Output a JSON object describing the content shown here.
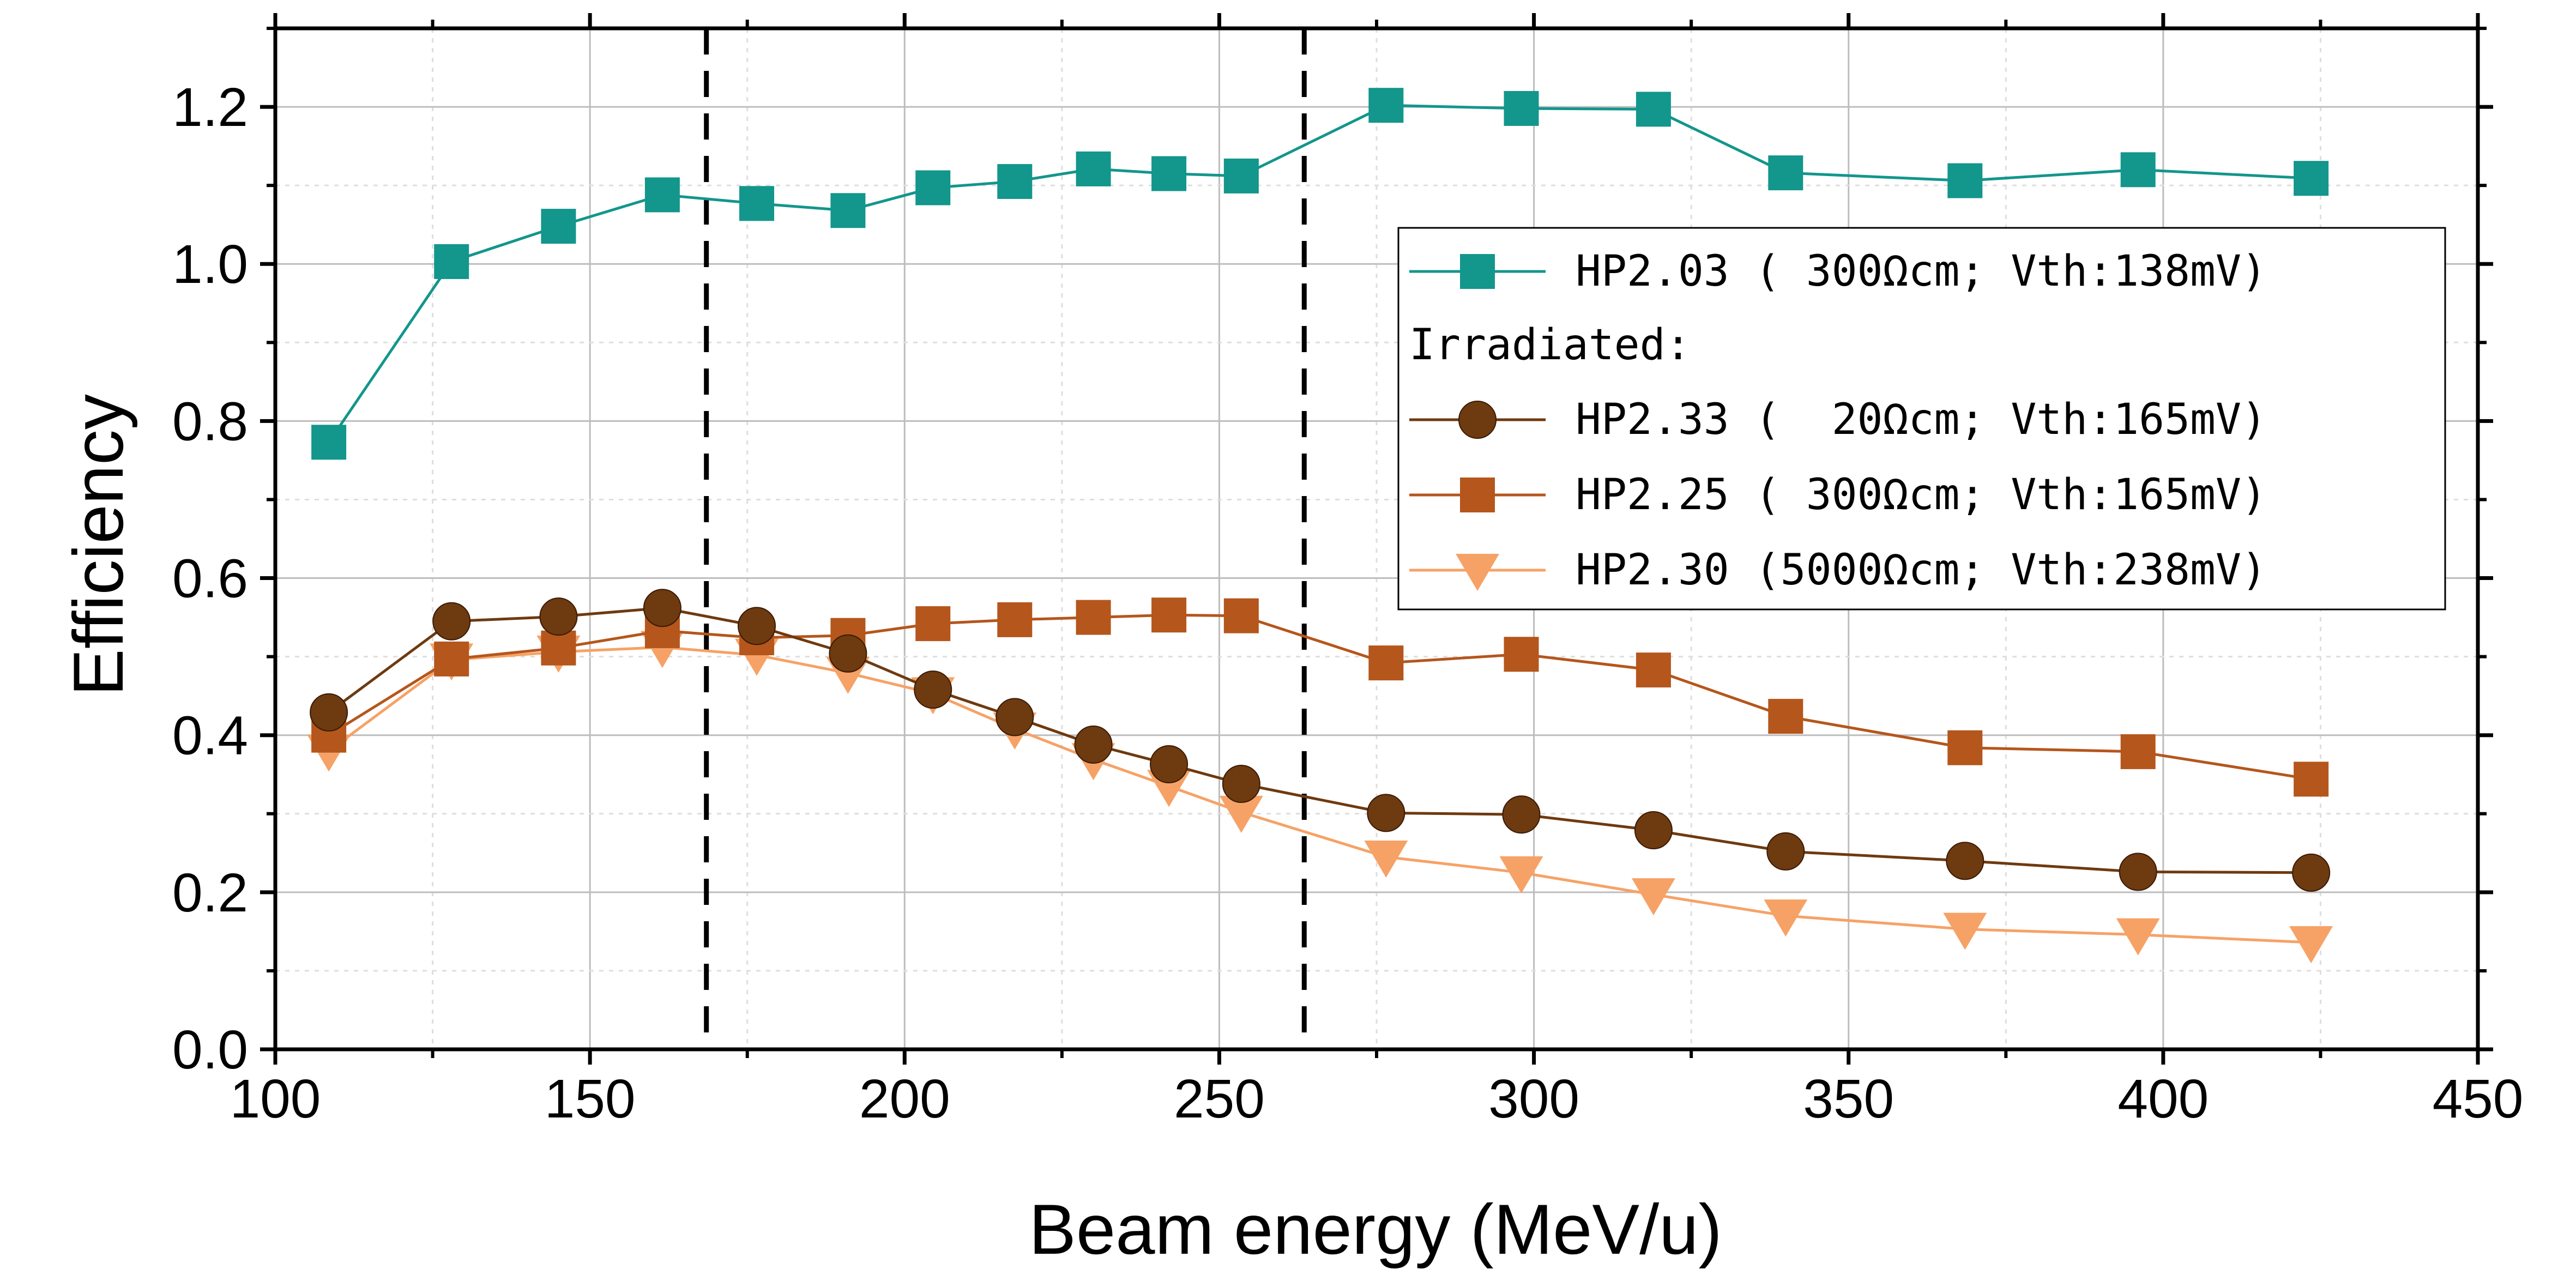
{
  "chart_data": {
    "type": "line",
    "title": "",
    "xlabel": "Beam energy (MeV/u)",
    "ylabel": "Efficiency",
    "xlim": [
      100,
      450
    ],
    "ylim": [
      0.0,
      1.3
    ],
    "xticks": [
      100,
      150,
      200,
      250,
      300,
      350,
      400,
      450
    ],
    "xtick_labels": [
      "100",
      "150",
      "200",
      "250",
      "300",
      "350",
      "400",
      "450"
    ],
    "yticks": [
      0.0,
      0.2,
      0.4,
      0.6,
      0.8,
      1.0,
      1.2
    ],
    "ytick_labels": [
      "0.0",
      "0.2",
      "0.4",
      "0.6",
      "0.8",
      "1.0",
      "1.2"
    ],
    "grid": true,
    "legend_position": "right",
    "legend_header": "Irradiated:",
    "vertical_lines": [
      168.5,
      263.5
    ],
    "series": [
      {
        "name": "HP2.03 ( 300Ωcm; Vth:138mV)",
        "color": "#13968C",
        "marker": "square",
        "x": [
          108.5,
          128,
          145,
          161.5,
          176.5,
          191,
          204.5,
          217.5,
          230,
          242,
          253.5,
          276.5,
          298,
          319,
          340,
          368.5,
          396,
          423.5
        ],
        "values": [
          0.773,
          1.003,
          1.048,
          1.088,
          1.077,
          1.068,
          1.097,
          1.105,
          1.121,
          1.115,
          1.112,
          1.202,
          1.198,
          1.197,
          1.116,
          1.106,
          1.12,
          1.109
        ]
      },
      {
        "name": "HP2.33 (  20Ωcm; Vth:165mV)",
        "color": "#6E3A10",
        "marker": "circle",
        "x": [
          108.5,
          128,
          145,
          161.5,
          176.5,
          191,
          204.5,
          217.5,
          230,
          242,
          253.5,
          276.5,
          298,
          319,
          340,
          368.5,
          396,
          423.5
        ],
        "values": [
          0.429,
          0.545,
          0.551,
          0.562,
          0.539,
          0.504,
          0.458,
          0.423,
          0.388,
          0.363,
          0.338,
          0.301,
          0.299,
          0.279,
          0.252,
          0.24,
          0.226,
          0.225
        ]
      },
      {
        "name": "HP2.25 ( 300Ωcm; Vth:165mV)",
        "color": "#B5561C",
        "marker": "square",
        "x": [
          108.5,
          128,
          145,
          161.5,
          176.5,
          191,
          204.5,
          217.5,
          230,
          242,
          253.5,
          276.5,
          298,
          319,
          340,
          368.5,
          396,
          423.5
        ],
        "values": [
          0.4,
          0.497,
          0.511,
          0.533,
          0.524,
          0.527,
          0.542,
          0.547,
          0.55,
          0.553,
          0.552,
          0.492,
          0.503,
          0.483,
          0.424,
          0.384,
          0.379,
          0.344
        ]
      },
      {
        "name": "HP2.30 (5000Ωcm; Vth:238mV)",
        "color": "#F6A266",
        "marker": "triangle-down",
        "x": [
          108.5,
          128,
          145,
          161.5,
          176.5,
          191,
          204.5,
          217.5,
          230,
          242,
          253.5,
          276.5,
          298,
          319,
          340,
          368.5,
          396,
          423.5
        ],
        "values": [
          0.38,
          0.496,
          0.506,
          0.512,
          0.502,
          0.479,
          0.453,
          0.408,
          0.369,
          0.335,
          0.302,
          0.245,
          0.225,
          0.197,
          0.17,
          0.153,
          0.146,
          0.136
        ]
      }
    ]
  }
}
